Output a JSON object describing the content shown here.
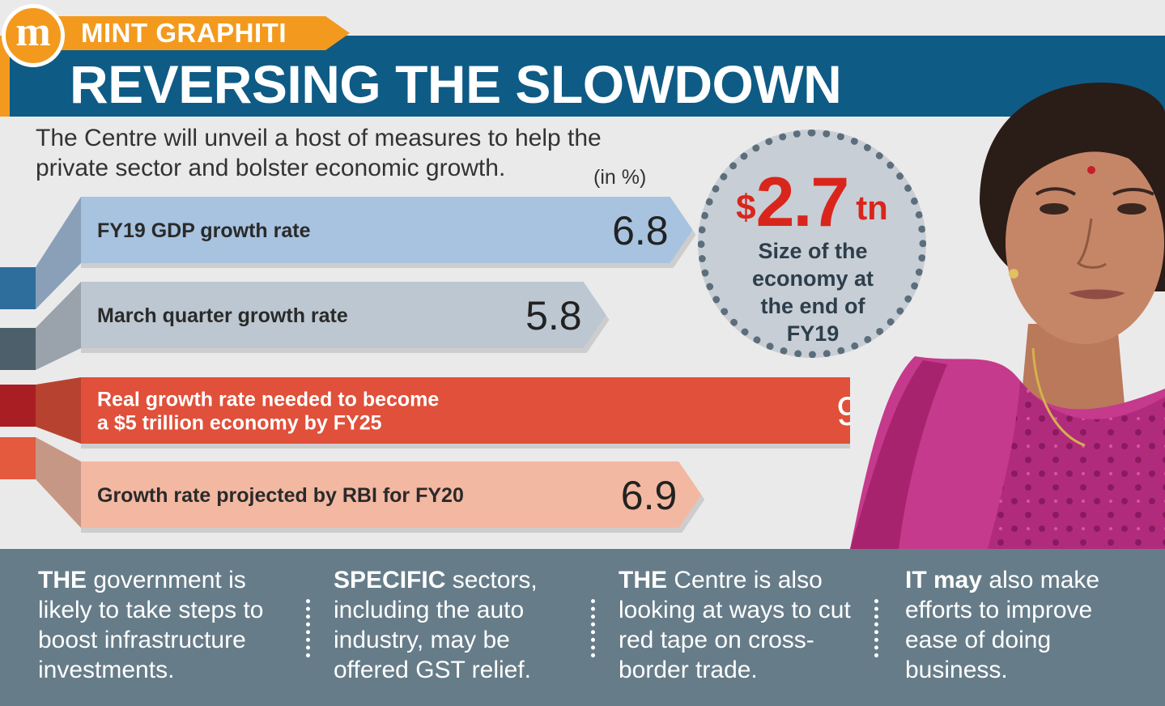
{
  "brand": {
    "logo": "m",
    "name": "MINT GRAPHITI"
  },
  "title": "REVERSING THE SLOWDOWN",
  "intro": "The Centre will unveil a host of measures to help the private sector and bolster economic growth.",
  "chart_data": {
    "type": "bar",
    "unit_note": "(in %)",
    "categories": [
      [
        "FY19 GDP growth rate"
      ],
      [
        "March quarter growth rate"
      ],
      [
        "Real growth rate needed to become",
        "a $5 trillion economy by FY25"
      ],
      [
        "Growth rate projected by RBI for FY20"
      ]
    ],
    "values": [
      6.8,
      5.8,
      9,
      6.9
    ],
    "value_labels": [
      "6.8",
      "5.8",
      "9",
      "6.9"
    ],
    "colors": [
      "#a7c3e0",
      "#bcc7d1",
      "#e0503a",
      "#f3b8a2"
    ],
    "tab_colors": [
      "#2e6e9c",
      "#4d5f6b",
      "#a81e22",
      "#e35a3f"
    ]
  },
  "badge": {
    "currency": "$",
    "value": "2.7",
    "unit": "tn",
    "caption": "Size of the economy at the end of FY19"
  },
  "notes": [
    {
      "lead": "THE",
      "text": " government is likely to take steps to boost infrastructure investments."
    },
    {
      "lead": "SPECIFIC",
      "text": " sectors, including the auto industry, may be offered GST relief."
    },
    {
      "lead": "THE",
      "text": " Centre is also looking at ways to cut red tape on cross-border trade."
    },
    {
      "lead": "IT may",
      "text": " also make efforts to improve ease of doing business."
    }
  ]
}
